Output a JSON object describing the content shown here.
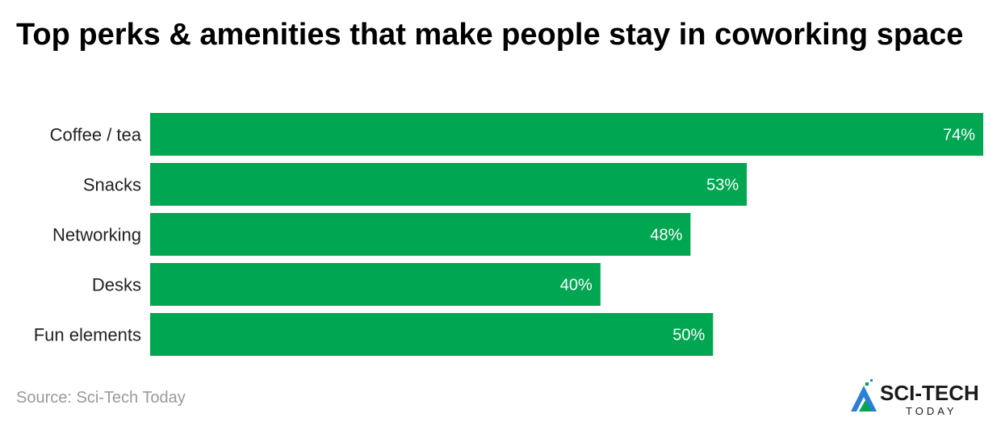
{
  "title": "Top perks & amenities that make people stay in coworking space",
  "source": "Source: Sci-Tech Today",
  "brand": {
    "name": "SCI-TECH",
    "sub": "TODAY",
    "color": "#1a1a1a",
    "accent": "#2b7fd4",
    "accent2": "#00a651"
  },
  "colors": {
    "bar": "#00a651"
  },
  "chart_data": {
    "type": "bar",
    "orientation": "horizontal",
    "categories": [
      "Coffee / tea",
      "Snacks",
      "Networking",
      "Desks",
      "Fun elements"
    ],
    "values": [
      74,
      53,
      48,
      40,
      50
    ],
    "value_labels": [
      "74%",
      "53%",
      "48%",
      "40%",
      "50%"
    ],
    "xlim": [
      0,
      74
    ],
    "grid": false,
    "legend": "none"
  }
}
